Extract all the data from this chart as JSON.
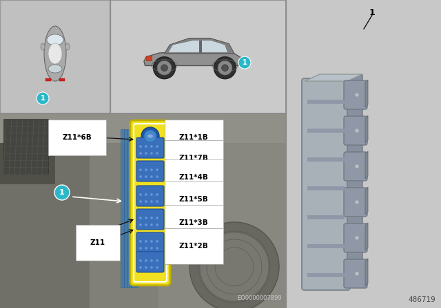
{
  "bg_color": "#c8c8c8",
  "panel_tl_color": "#b8b8b8",
  "panel_tr_color": "#c0c0c0",
  "panel_engine_color": "#888878",
  "border_color": "#999999",
  "title_num": "486719",
  "diagram_code": "EO0000007899",
  "teal_color": "#2ab8c8",
  "white": "#ffffff",
  "black": "#111111",
  "yellow_ism": "#f0e020",
  "blue_conn": "#4a88cc",
  "blue_conn_dark": "#2255aa",
  "label_bg": "#ffffff",
  "label_ec": "#888888",
  "labels_right": [
    "Z11*1B",
    "Z11*7B",
    "Z11*4B",
    "Z11*5B",
    "Z11*3B",
    "Z11*2B"
  ],
  "label_z11_6b": "Z11*6B",
  "label_z11": "Z11",
  "part_label": "1",
  "part_gray": "#a8aeb8",
  "part_gray2": "#9098a8",
  "part_gray3": "#b8bec8"
}
